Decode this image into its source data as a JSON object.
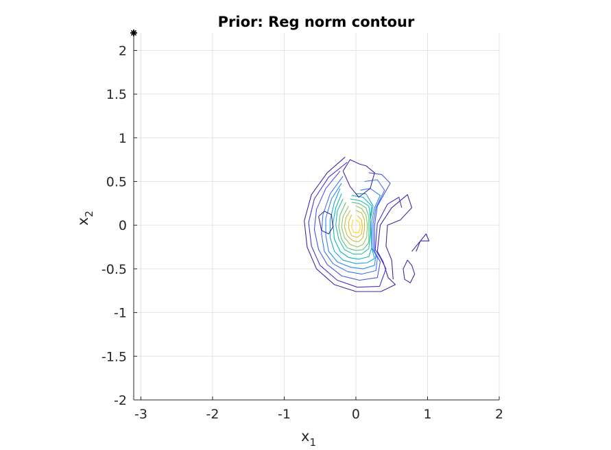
{
  "chart_data": {
    "type": "contour",
    "title": "Prior: Reg norm contour",
    "xlabel": "x",
    "xlabel_subscript": "1",
    "ylabel": "x",
    "ylabel_subscript": "2",
    "xlim": [
      -3.1,
      2.0
    ],
    "ylim": [
      -2.0,
      2.2
    ],
    "xticks": [
      -3,
      -2,
      -1,
      0,
      1,
      2
    ],
    "xtick_labels": [
      "-3",
      "-2",
      "-1",
      "0",
      "1",
      "2"
    ],
    "yticks": [
      -2,
      -1.5,
      -1,
      -0.5,
      0,
      0.5,
      1,
      1.5,
      2
    ],
    "ytick_labels": [
      "-2",
      "-1.5",
      "-1",
      "-0.5",
      "0",
      "0.5",
      "1",
      "1.5",
      "2"
    ],
    "grid": true,
    "colormap": "parula",
    "marker": {
      "x": -3.1,
      "y": 2.2,
      "symbol": "asterisk",
      "color": "#000000"
    },
    "contours": [
      {
        "level": 1,
        "color": "#3e26a8",
        "points": [
          [
            -0.15,
            0.78
          ],
          [
            -0.4,
            0.6
          ],
          [
            -0.62,
            0.35
          ],
          [
            -0.72,
            0.05
          ],
          [
            -0.68,
            -0.25
          ],
          [
            -0.55,
            -0.5
          ],
          [
            -0.3,
            -0.68
          ],
          [
            0.0,
            -0.76
          ],
          [
            0.35,
            -0.76
          ],
          [
            0.55,
            -0.68
          ],
          [
            0.45,
            -0.6
          ],
          [
            0.38,
            -0.42
          ],
          [
            0.3,
            -0.3
          ],
          [
            0.34,
            0.0
          ],
          [
            0.5,
            0.2
          ],
          [
            0.72,
            0.35
          ],
          [
            0.78,
            0.2
          ],
          [
            0.62,
            0.06
          ],
          [
            0.44,
            0.0
          ],
          [
            0.42,
            -0.24
          ],
          [
            0.5,
            -0.4
          ],
          [
            0.52,
            -0.62
          ]
        ]
      },
      {
        "level": 2,
        "color": "#4433d0",
        "points": [
          [
            -0.12,
            0.72
          ],
          [
            -0.38,
            0.55
          ],
          [
            -0.58,
            0.3
          ],
          [
            -0.66,
            0.03
          ],
          [
            -0.62,
            -0.24
          ],
          [
            -0.5,
            -0.46
          ],
          [
            -0.26,
            -0.63
          ],
          [
            0.02,
            -0.71
          ],
          [
            0.33,
            -0.7
          ],
          [
            0.42,
            -0.5
          ],
          [
            0.34,
            -0.37
          ],
          [
            0.27,
            -0.28
          ],
          [
            0.3,
            0.02
          ],
          [
            0.44,
            0.24
          ],
          [
            0.6,
            0.32
          ],
          [
            0.64,
            0.2
          ]
        ]
      },
      {
        "level": 3,
        "color": "#4751e8",
        "points": [
          [
            -0.22,
            0.62
          ],
          [
            -0.42,
            0.42
          ],
          [
            -0.55,
            0.18
          ],
          [
            -0.58,
            -0.05
          ],
          [
            -0.52,
            -0.28
          ],
          [
            -0.4,
            -0.45
          ],
          [
            -0.2,
            -0.58
          ],
          [
            0.05,
            -0.63
          ],
          [
            0.3,
            -0.6
          ],
          [
            0.34,
            -0.42
          ],
          [
            0.26,
            -0.3
          ],
          [
            0.26,
            0.0
          ],
          [
            0.3,
            0.22
          ],
          [
            0.48,
            0.48
          ],
          [
            0.36,
            0.58
          ],
          [
            0.18,
            0.6
          ]
        ]
      },
      {
        "level": 4,
        "color": "#3f6ffd",
        "points": [
          [
            -0.18,
            0.56
          ],
          [
            -0.36,
            0.36
          ],
          [
            -0.46,
            0.12
          ],
          [
            -0.48,
            -0.1
          ],
          [
            -0.44,
            -0.3
          ],
          [
            -0.32,
            -0.44
          ],
          [
            -0.12,
            -0.53
          ],
          [
            0.08,
            -0.56
          ],
          [
            0.28,
            -0.52
          ],
          [
            0.3,
            -0.38
          ],
          [
            0.24,
            -0.28
          ],
          [
            0.24,
            0.02
          ],
          [
            0.28,
            0.2
          ],
          [
            0.4,
            0.4
          ],
          [
            0.3,
            0.52
          ],
          [
            0.12,
            0.5
          ]
        ]
      },
      {
        "level": 5,
        "color": "#2b89f1",
        "points": [
          [
            -0.2,
            0.48
          ],
          [
            -0.34,
            0.3
          ],
          [
            -0.42,
            0.08
          ],
          [
            -0.42,
            -0.12
          ],
          [
            -0.38,
            -0.3
          ],
          [
            -0.26,
            -0.42
          ],
          [
            -0.08,
            -0.48
          ],
          [
            0.1,
            -0.5
          ],
          [
            0.26,
            -0.46
          ],
          [
            0.28,
            -0.34
          ],
          [
            0.22,
            -0.26
          ],
          [
            0.22,
            0.04
          ],
          [
            0.26,
            0.2
          ],
          [
            0.34,
            0.34
          ],
          [
            0.2,
            0.42
          ],
          [
            0.06,
            0.4
          ]
        ]
      },
      {
        "level": 6,
        "color": "#1ca1db",
        "points": [
          [
            -0.22,
            0.42
          ],
          [
            -0.3,
            0.26
          ],
          [
            -0.36,
            0.06
          ],
          [
            -0.36,
            -0.14
          ],
          [
            -0.3,
            -0.3
          ],
          [
            -0.18,
            -0.4
          ],
          [
            0.0,
            -0.44
          ],
          [
            0.16,
            -0.43
          ],
          [
            0.26,
            -0.38
          ],
          [
            0.22,
            -0.26
          ],
          [
            0.2,
            0.06
          ],
          [
            0.24,
            0.22
          ],
          [
            0.14,
            0.36
          ],
          [
            0.0,
            0.36
          ]
        ]
      },
      {
        "level": 7,
        "color": "#0cb5c2",
        "points": [
          [
            -0.2,
            0.36
          ],
          [
            -0.28,
            0.2
          ],
          [
            -0.32,
            0.02
          ],
          [
            -0.3,
            -0.16
          ],
          [
            -0.22,
            -0.3
          ],
          [
            -0.1,
            -0.37
          ],
          [
            0.04,
            -0.39
          ],
          [
            0.18,
            -0.36
          ],
          [
            0.22,
            -0.26
          ],
          [
            0.2,
            0.08
          ],
          [
            0.22,
            0.22
          ],
          [
            0.1,
            0.32
          ],
          [
            -0.06,
            0.34
          ]
        ]
      },
      {
        "level": 8,
        "color": "#24c0a2",
        "points": [
          [
            -0.18,
            0.3
          ],
          [
            -0.26,
            0.16
          ],
          [
            -0.28,
            0.0
          ],
          [
            -0.24,
            -0.16
          ],
          [
            -0.16,
            -0.28
          ],
          [
            -0.04,
            -0.33
          ],
          [
            0.08,
            -0.33
          ],
          [
            0.18,
            -0.27
          ],
          [
            0.2,
            -0.1
          ],
          [
            0.2,
            0.1
          ],
          [
            0.18,
            0.22
          ],
          [
            0.06,
            0.28
          ],
          [
            -0.08,
            0.3
          ]
        ]
      },
      {
        "level": 9,
        "color": "#5bc680",
        "points": [
          [
            -0.14,
            0.26
          ],
          [
            -0.22,
            0.12
          ],
          [
            -0.24,
            -0.02
          ],
          [
            -0.2,
            -0.16
          ],
          [
            -0.12,
            -0.26
          ],
          [
            0.0,
            -0.29
          ],
          [
            0.1,
            -0.28
          ],
          [
            0.18,
            -0.2
          ],
          [
            0.18,
            -0.04
          ],
          [
            0.18,
            0.1
          ],
          [
            0.14,
            0.2
          ],
          [
            0.04,
            0.25
          ],
          [
            -0.06,
            0.26
          ]
        ]
      },
      {
        "level": 10,
        "color": "#92c75a",
        "points": [
          [
            -0.1,
            0.22
          ],
          [
            -0.18,
            0.1
          ],
          [
            -0.2,
            -0.02
          ],
          [
            -0.16,
            -0.14
          ],
          [
            -0.08,
            -0.22
          ],
          [
            0.02,
            -0.25
          ],
          [
            0.1,
            -0.22
          ],
          [
            0.15,
            -0.14
          ],
          [
            0.16,
            0.0
          ],
          [
            0.14,
            0.12
          ],
          [
            0.08,
            0.19
          ],
          [
            0.0,
            0.22
          ]
        ]
      },
      {
        "level": 11,
        "color": "#c4bd43",
        "points": [
          [
            -0.08,
            0.17
          ],
          [
            -0.14,
            0.08
          ],
          [
            -0.16,
            -0.02
          ],
          [
            -0.12,
            -0.12
          ],
          [
            -0.04,
            -0.18
          ],
          [
            0.04,
            -0.19
          ],
          [
            0.1,
            -0.14
          ],
          [
            0.12,
            -0.04
          ],
          [
            0.12,
            0.06
          ],
          [
            0.08,
            0.14
          ],
          [
            0.0,
            0.17
          ]
        ]
      },
      {
        "level": 12,
        "color": "#ecba27",
        "points": [
          [
            -0.06,
            0.12
          ],
          [
            -0.1,
            0.04
          ],
          [
            -0.1,
            -0.04
          ],
          [
            -0.06,
            -0.12
          ],
          [
            0.02,
            -0.14
          ],
          [
            0.08,
            -0.1
          ],
          [
            0.09,
            -0.02
          ],
          [
            0.08,
            0.06
          ],
          [
            0.02,
            0.11
          ]
        ]
      },
      {
        "level": 13,
        "color": "#fbd72a",
        "points": [
          [
            -0.04,
            0.06
          ],
          [
            -0.06,
            -0.02
          ],
          [
            -0.03,
            -0.08
          ],
          [
            0.03,
            -0.09
          ],
          [
            0.06,
            -0.04
          ],
          [
            0.05,
            0.03
          ],
          [
            0.0,
            0.06
          ]
        ]
      },
      {
        "level": 1,
        "color": "#3e26a8",
        "points": [
          [
            -0.18,
            0.62
          ],
          [
            -0.08,
            0.75
          ],
          [
            0.05,
            0.7
          ],
          [
            0.14,
            0.68
          ],
          [
            0.26,
            0.6
          ],
          [
            0.2,
            0.42
          ],
          [
            0.04,
            0.32
          ],
          [
            -0.08,
            0.44
          ],
          [
            -0.18,
            0.62
          ]
        ]
      },
      {
        "level": 1,
        "color": "#3e26a8",
        "points": [
          [
            -0.52,
            0.1
          ],
          [
            -0.44,
            0.16
          ],
          [
            -0.34,
            0.12
          ],
          [
            -0.32,
            -0.02
          ],
          [
            -0.38,
            -0.1
          ],
          [
            -0.48,
            -0.06
          ],
          [
            -0.52,
            0.1
          ]
        ]
      },
      {
        "level": 1,
        "color": "#3e26a8",
        "points": [
          [
            0.72,
            -0.4
          ],
          [
            0.66,
            -0.5
          ],
          [
            0.68,
            -0.62
          ],
          [
            0.76,
            -0.66
          ],
          [
            0.82,
            -0.56
          ],
          [
            0.78,
            -0.46
          ],
          [
            0.72,
            -0.4
          ]
        ]
      },
      {
        "level": 1,
        "color": "#3e26a8",
        "points": [
          [
            0.78,
            -0.3
          ],
          [
            0.86,
            -0.22
          ],
          [
            0.98,
            -0.1
          ],
          [
            1.02,
            -0.18
          ],
          [
            0.9,
            -0.18
          ],
          [
            0.84,
            -0.3
          ]
        ]
      }
    ]
  }
}
